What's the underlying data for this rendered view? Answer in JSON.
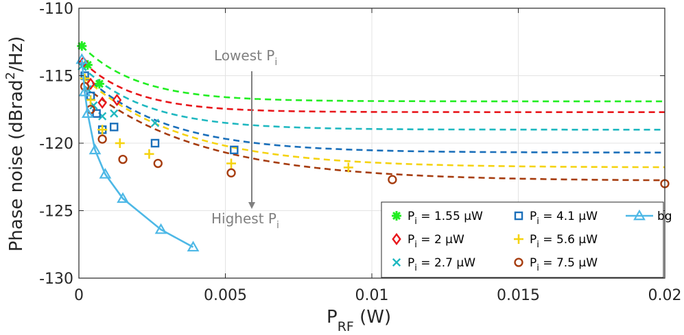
{
  "chart_data": {
    "type": "line",
    "xlabel": {
      "base": "P",
      "sub": "RF",
      "rest": " (W)"
    },
    "ylabel": {
      "base": "Phase noise (dBrad",
      "sup": "2",
      "rest": "/Hz)"
    },
    "xlim": [
      0,
      0.02
    ],
    "ylim": [
      -130,
      -110
    ],
    "xticks": [
      0,
      0.005,
      0.01,
      0.015,
      0.02
    ],
    "xtick_labels": [
      "0",
      "0.005",
      "0.01",
      "0.015",
      "0.02"
    ],
    "yticks": [
      -130,
      -125,
      -120,
      -115,
      -110
    ],
    "ytick_labels": [
      "-130",
      "-125",
      "-120",
      "-115",
      "-110"
    ],
    "grid": true,
    "legend_position": "bottom-right",
    "annotations": [
      {
        "base": "Lowest P",
        "sub": "i"
      },
      {
        "base": "Highest P",
        "sub": "i"
      }
    ],
    "series": [
      {
        "name": {
          "base": "P",
          "sub": "i",
          "rest": " = 1.55 μW"
        },
        "color": "#22ee22",
        "marker": "asterisk",
        "x": [
          0.0001,
          0.0003,
          0.0007
        ],
        "y": [
          -112.8,
          -114.2,
          -115.6
        ],
        "fit_asymptote": -116.9,
        "fit_coef": 0.0019
      },
      {
        "name": {
          "base": "P",
          "sub": "i",
          "rest": " = 2 μW"
        },
        "color": "#e8161b",
        "marker": "diamond",
        "x": [
          0.00015,
          0.0004,
          0.0008,
          0.0013
        ],
        "y": [
          -114.0,
          -115.6,
          -117.0,
          -116.8
        ],
        "fit_asymptote": -117.7,
        "fit_coef": 0.0018
      },
      {
        "name": {
          "base": "P",
          "sub": "i",
          "rest": " = 2.7 μW"
        },
        "color": "#1fb8c0",
        "marker": "x",
        "x": [
          0.0001,
          0.0003,
          0.0005,
          0.0008,
          0.0012,
          0.0026
        ],
        "y": [
          -114.3,
          -116.0,
          -117.2,
          -118.0,
          -117.8,
          -118.5
        ],
        "fit_asymptote": -119.0,
        "fit_coef": 0.0022
      },
      {
        "name": {
          "base": "P",
          "sub": "i",
          "rest": " = 4.1 μW"
        },
        "color": "#1a6fba",
        "marker": "square",
        "x": [
          0.0002,
          0.0004,
          0.0006,
          0.0008,
          0.0012,
          0.0026,
          0.0053
        ],
        "y": [
          -115.0,
          -116.5,
          -117.8,
          -119.0,
          -118.8,
          -120.0,
          -120.5
        ],
        "fit_asymptote": -120.7,
        "fit_coef": 0.0028
      },
      {
        "name": {
          "base": "P",
          "sub": "i",
          "rest": " = 5.6 μW"
        },
        "color": "#f5d310",
        "marker": "plus",
        "x": [
          0.0002,
          0.0004,
          0.0008,
          0.0014,
          0.0024,
          0.0052,
          0.0092
        ],
        "y": [
          -115.2,
          -116.8,
          -119.0,
          -120.0,
          -120.8,
          -121.5,
          -121.8
        ],
        "fit_asymptote": -121.8,
        "fit_coef": 0.0034
      },
      {
        "name": {
          "base": "P",
          "sub": "i",
          "rest": " = 7.5 μW"
        },
        "color": "#a63c0e",
        "marker": "circle",
        "x": [
          0.0002,
          0.0004,
          0.0008,
          0.0015,
          0.0027,
          0.0052,
          0.0107,
          0.02
        ],
        "y": [
          -115.8,
          -117.5,
          -119.7,
          -121.2,
          -121.5,
          -122.2,
          -122.7,
          -123.0
        ],
        "fit_asymptote": -122.8,
        "fit_coef": 0.004
      },
      {
        "name": {
          "base": "bg"
        },
        "color": "#4db8e6",
        "marker": "triangle",
        "connected": true,
        "x": [
          0.0001,
          0.0002,
          0.0003,
          0.00055,
          0.0009,
          0.0015,
          0.0028,
          0.0039
        ],
        "y": [
          -113.8,
          -116.2,
          -117.8,
          -120.5,
          -122.3,
          -124.1,
          -126.4,
          -127.7
        ]
      }
    ]
  }
}
